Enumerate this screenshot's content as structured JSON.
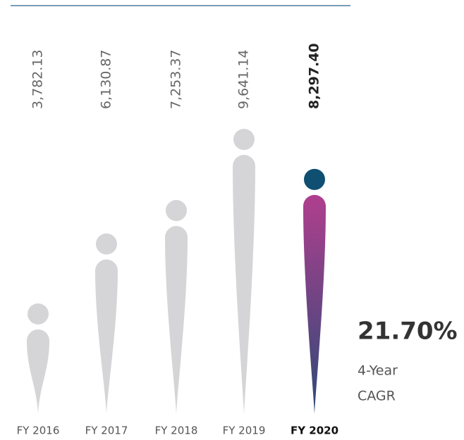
{
  "chart_data": {
    "type": "bar",
    "categories": [
      "FY 2016",
      "FY 2017",
      "FY 2018",
      "FY 2019",
      "FY 2020"
    ],
    "values": [
      3782.13,
      6130.87,
      7253.37,
      9641.14,
      8297.4
    ],
    "value_labels": [
      "3,782.13",
      "6,130.87",
      "7,253.37",
      "9,641.14",
      "8,297.40"
    ],
    "color": "#d5d5d7",
    "highlight_index": 4,
    "highlight_color": "#0e4f72",
    "highlight_gradient": [
      "#b03f8e",
      "#2c4a78"
    ],
    "annotation": {
      "value": "21.70%",
      "lines": [
        "4-Year",
        "CAGR"
      ]
    }
  }
}
